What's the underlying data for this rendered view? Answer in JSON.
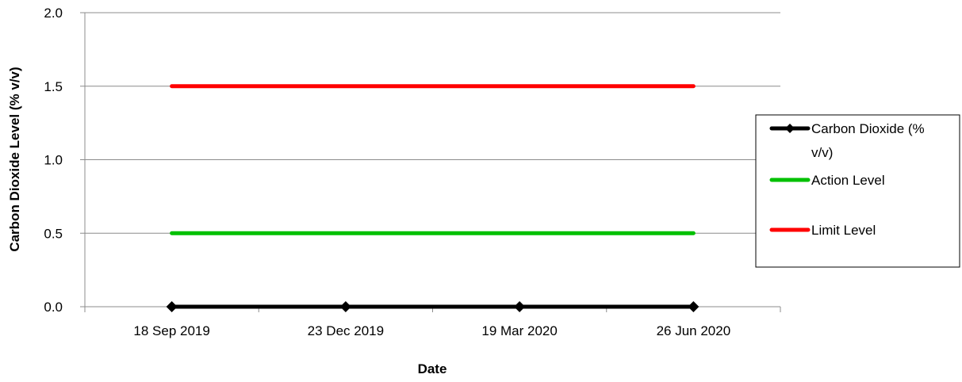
{
  "chart_data": {
    "type": "line",
    "title": "",
    "xlabel": "Date",
    "ylabel": "Carbon Dioxide Level (% v/v)",
    "ylim": [
      0.0,
      2.0
    ],
    "y_ticks": [
      "0.0",
      "0.5",
      "1.0",
      "1.5",
      "2.0"
    ],
    "x_tick_labels": [
      "18 Sep 2019",
      "23 Dec 2019",
      "19 Mar 2020",
      "26 Jun 2020"
    ],
    "x": [
      "18 Sep 2019",
      "23 Dec 2019",
      "19 Mar 2020",
      "26 Jun 2020"
    ],
    "grid": true,
    "legend_position": "right",
    "series": [
      {
        "name": "Carbon Dioxide (% v/v)",
        "values": [
          0.0,
          0.0,
          0.0,
          0.0
        ],
        "color": "#000000",
        "marker": "diamond"
      },
      {
        "name": "Action Level",
        "values": [
          0.5,
          0.5,
          0.5,
          0.5
        ],
        "color": "#00c000",
        "marker": "none"
      },
      {
        "name": "Limit Level",
        "values": [
          1.5,
          1.5,
          1.5,
          1.5
        ],
        "color": "#ff0000",
        "marker": "none"
      }
    ]
  }
}
